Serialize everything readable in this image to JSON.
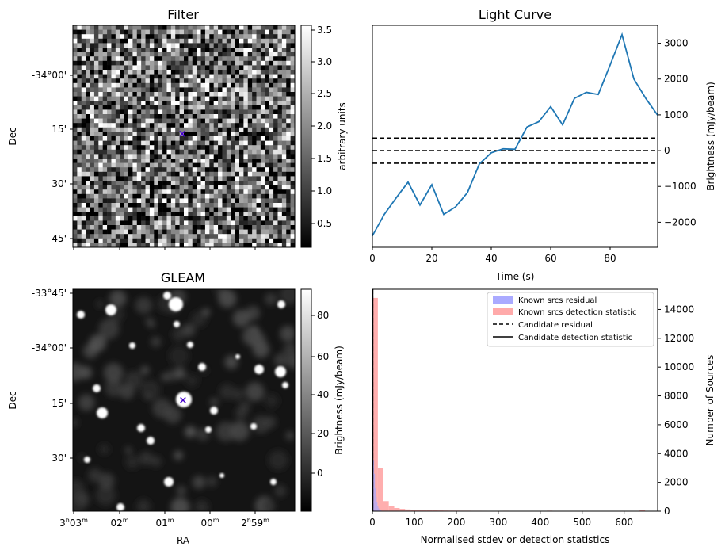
{
  "panels": {
    "filter": {
      "title": "Filter",
      "ylabel": "Dec",
      "yticks": [
        "-34°00'",
        "15'",
        "30'",
        "45'"
      ],
      "colorbar": {
        "label": "arbitrary units",
        "ticks": [
          "3.5",
          "3.0",
          "2.5",
          "2.0",
          "1.5",
          "1.0",
          "0.5"
        ]
      }
    },
    "gleam": {
      "title": "GLEAM",
      "ylabel": "Dec",
      "xlabel": "RA",
      "yticks": [
        "-33°45'",
        "-34°00'",
        "15'",
        "30'"
      ],
      "xticks": [
        {
          "main": "3",
          "sup1": "h",
          "mid": "03",
          "sup2": "m"
        },
        {
          "main": "",
          "sup1": "",
          "mid": "02",
          "sup2": "m"
        },
        {
          "main": "",
          "sup1": "",
          "mid": "01",
          "sup2": "m"
        },
        {
          "main": "",
          "sup1": "",
          "mid": "00",
          "sup2": "m"
        },
        {
          "main": "2",
          "sup1": "h",
          "mid": "59",
          "sup2": "m"
        }
      ],
      "colorbar": {
        "label": "Brightness (mJy/beam)",
        "ticks": [
          "80",
          "60",
          "40",
          "20",
          "0"
        ]
      }
    }
  },
  "colors": {
    "line": "#1f77b4",
    "marker": "#4400cc",
    "known_residual": "#aaaaff",
    "known_detection": "#ffaaaa"
  },
  "chart_data": [
    {
      "type": "line",
      "title": "Light Curve",
      "xlabel": "Time (s)",
      "ylabel": "Brightness (mJy/beam)",
      "xlim": [
        0,
        96
      ],
      "ylim": [
        -2700,
        3500
      ],
      "xticks": [
        0,
        20,
        40,
        60,
        80
      ],
      "yticks": [
        -2000,
        -1000,
        0,
        1000,
        2000,
        3000
      ],
      "series": [
        {
          "name": "light curve",
          "x": [
            0,
            4,
            8,
            12,
            16,
            20,
            24,
            28,
            32,
            36,
            40,
            44,
            48,
            52,
            56,
            60,
            64,
            68,
            72,
            76,
            80,
            84,
            88,
            92,
            96
          ],
          "y": [
            -2380,
            -1780,
            -1320,
            -880,
            -1520,
            -950,
            -1780,
            -1570,
            -1170,
            -370,
            -60,
            50,
            40,
            660,
            810,
            1230,
            720,
            1460,
            1630,
            1570,
            2390,
            3240,
            2000,
            1460,
            990
          ]
        }
      ],
      "hlines": [
        {
          "y": 0,
          "style": "dashed"
        },
        {
          "y": 350,
          "style": "dashed"
        },
        {
          "y": -350,
          "style": "dashed"
        }
      ]
    },
    {
      "type": "bar",
      "title": "",
      "xlabel": "Normalised stdev or detection statistics",
      "ylabel": "Number of Sources",
      "xlim": [
        0,
        680
      ],
      "ylim": [
        0,
        15400
      ],
      "xticks": [
        0,
        100,
        200,
        300,
        400,
        500,
        600
      ],
      "yticks": [
        0,
        2000,
        4000,
        6000,
        8000,
        10000,
        12000,
        14000
      ],
      "legend": {
        "position": "top-right",
        "entries": [
          {
            "label": "Known srcs residual",
            "kind": "patch-blue"
          },
          {
            "label": "Known srcs detection statistic",
            "kind": "patch-red"
          },
          {
            "label": "Candidate residual",
            "kind": "dashed"
          },
          {
            "label": "Candidate detection statistic",
            "kind": "solid"
          }
        ]
      },
      "series": [
        {
          "name": "Known srcs detection statistic",
          "bin_width": 13,
          "x": [
            0,
            13,
            26,
            39,
            52,
            65,
            78,
            91,
            104,
            117,
            130,
            143,
            156,
            169,
            182,
            195,
            208,
            221,
            234,
            247,
            260,
            273,
            286,
            299,
            312,
            325,
            338,
            351,
            364,
            377,
            390,
            403,
            416,
            429,
            442,
            455,
            468,
            481,
            494,
            507,
            520,
            533,
            546,
            559,
            572,
            585,
            598,
            611,
            624,
            637,
            650,
            663
          ],
          "y": [
            14800,
            3000,
            700,
            350,
            220,
            160,
            120,
            90,
            80,
            70,
            60,
            55,
            50,
            45,
            40,
            40,
            35,
            35,
            30,
            30,
            28,
            25,
            25,
            22,
            30,
            20,
            20,
            18,
            18,
            16,
            16,
            15,
            35,
            15,
            14,
            14,
            13,
            13,
            12,
            12,
            12,
            12,
            11,
            11,
            11,
            10,
            10,
            10,
            10,
            60,
            10,
            10
          ]
        },
        {
          "name": "Known srcs residual",
          "bin_width": 2,
          "x": [
            0,
            2,
            4,
            6,
            8,
            10,
            12,
            14,
            16,
            18,
            20
          ],
          "y": [
            4000,
            3500,
            2600,
            1600,
            1000,
            600,
            350,
            200,
            120,
            70,
            40
          ]
        }
      ],
      "vlines": [
        {
          "x": 0.5,
          "style": "dashed"
        },
        {
          "x": 0.8,
          "style": "solid"
        }
      ]
    }
  ]
}
